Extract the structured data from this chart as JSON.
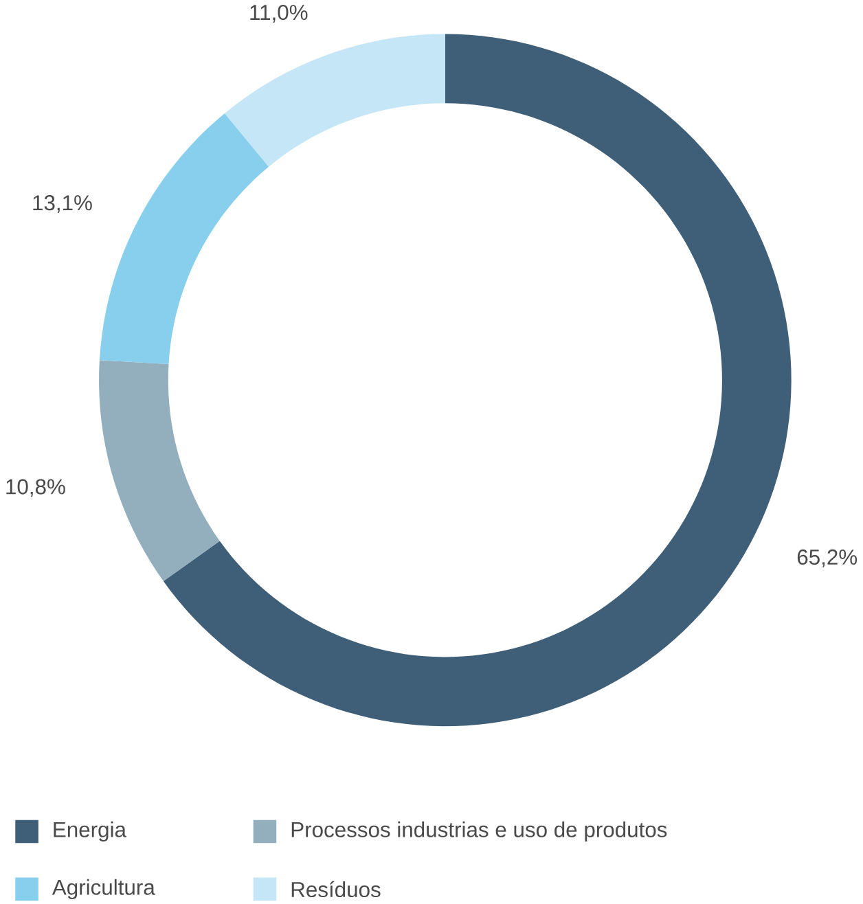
{
  "chart_data": {
    "type": "donut",
    "categories": [
      "Energia",
      "Processos industrias e uso de produtos",
      "Agricultura",
      "Resíduos"
    ],
    "values": [
      65.2,
      10.8,
      13.1,
      11.0
    ],
    "value_labels": [
      "65,2%",
      "10,8%",
      "13,1%",
      "11,0%"
    ],
    "colors": [
      "#3f5f78",
      "#93afbd",
      "#88cfee",
      "#c5e6f6"
    ],
    "legend": "bottom"
  }
}
